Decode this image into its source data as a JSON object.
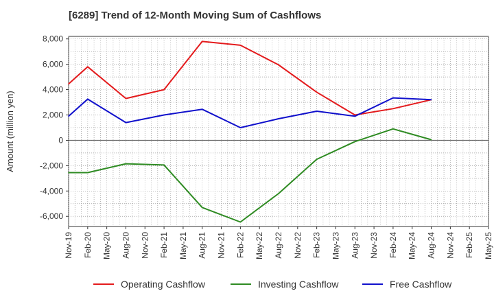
{
  "chart_data": {
    "type": "line",
    "title": "[6289]  Trend of 12-Month Moving Sum of Cashflows",
    "ylabel": "Amount (million yen)",
    "xlabel": "",
    "ylim": [
      -6800,
      8200
    ],
    "yticks": [
      8000,
      6000,
      4000,
      2000,
      0,
      -2000,
      -4000,
      -6000
    ],
    "ytick_labels": [
      "8,000",
      "6,000",
      "4,000",
      "2,000",
      "0",
      "-2,000",
      "-4,000",
      "-6,000"
    ],
    "categories": [
      "Nov-19",
      "Feb-20",
      "May-20",
      "Aug-20",
      "Nov-20",
      "Feb-21",
      "May-21",
      "Aug-21",
      "Nov-21",
      "Feb-22",
      "May-22",
      "Aug-22",
      "Nov-22",
      "Feb-23",
      "May-23",
      "Aug-23",
      "Nov-23",
      "Feb-24",
      "May-24",
      "Aug-24",
      "Nov-24",
      "Feb-25",
      "May-25"
    ],
    "grid": true,
    "legend_position": "bottom",
    "series": [
      {
        "name": "Operating Cashflow",
        "color": "#e41a1c",
        "values": [
          4450,
          5800,
          null,
          3300,
          null,
          4000,
          null,
          7800,
          null,
          7500,
          null,
          5950,
          null,
          3800,
          null,
          2000,
          null,
          2500,
          null,
          3200,
          null,
          null,
          null
        ]
      },
      {
        "name": "Investing Cashflow",
        "color": "#2e8b22",
        "values": [
          -2550,
          -2550,
          null,
          -1850,
          null,
          -1950,
          null,
          -5300,
          null,
          -6450,
          null,
          -4200,
          null,
          -1500,
          null,
          -100,
          null,
          900,
          null,
          50,
          null,
          null,
          null
        ]
      },
      {
        "name": "Free Cashflow",
        "color": "#1010cc",
        "values": [
          1900,
          3250,
          null,
          1400,
          null,
          2000,
          null,
          2450,
          null,
          1000,
          null,
          1700,
          null,
          2300,
          null,
          1900,
          null,
          3350,
          null,
          3200,
          null,
          null,
          null
        ]
      }
    ]
  }
}
